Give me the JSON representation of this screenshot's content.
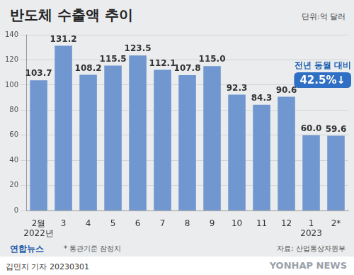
{
  "chart_data": {
    "type": "bar",
    "title": "반도체 수출액 추이",
    "unit_label": "단위:억 달러",
    "categories": [
      "2월",
      "3",
      "4",
      "5",
      "6",
      "7",
      "8",
      "9",
      "10",
      "11",
      "12",
      "1",
      "2*"
    ],
    "category_groups": [
      {
        "category": "2월",
        "label": "2022년"
      },
      {
        "category": "1",
        "label": "2023"
      }
    ],
    "values": [
      103.7,
      131.2,
      108.2,
      115.5,
      123.5,
      112.1,
      107.8,
      115.0,
      92.3,
      84.3,
      90.6,
      60.0,
      59.6
    ],
    "value_labels": [
      "103.7",
      "131.2",
      "108.2",
      "115.5",
      "123.5",
      "112.1",
      "107.8",
      "115.0",
      "92.3",
      "84.3",
      "90.6",
      "60.0",
      "59.6"
    ],
    "data_labels": true,
    "color": "#7097cf",
    "ylim": [
      0,
      140
    ],
    "yticks": [
      0,
      20,
      40,
      60,
      80,
      100,
      120,
      140
    ],
    "grid": true,
    "annotation": {
      "category": "2*",
      "text": "전년 동월 대비",
      "value_label": "42.5%↓"
    },
    "note": "* 통관기준 잠정치",
    "source": "자료: 산업통상자원부",
    "logo": "연합뉴스",
    "byline": "김민지 기자 20230301",
    "watermark": "YONHAP NEWS"
  }
}
